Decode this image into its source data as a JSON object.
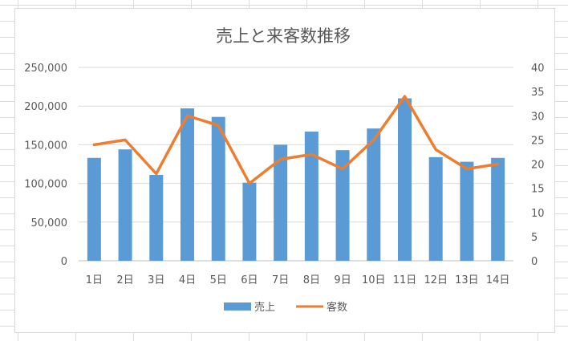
{
  "chart_data": {
    "type": "bar",
    "title": "売上と来客数推移",
    "categories": [
      "1日",
      "2日",
      "3日",
      "4日",
      "5日",
      "6日",
      "7日",
      "8日",
      "9日",
      "10日",
      "11日",
      "12日",
      "13日",
      "14日"
    ],
    "series": [
      {
        "name": "売上",
        "type": "bar",
        "axis": "left",
        "color": "#5B9BD5",
        "values": [
          133000,
          144000,
          111000,
          197000,
          186000,
          101000,
          150000,
          167000,
          143000,
          171000,
          210000,
          134000,
          128000,
          133000
        ]
      },
      {
        "name": "客数",
        "type": "line",
        "axis": "right",
        "color": "#ED7D31",
        "values": [
          24,
          25,
          18,
          30,
          28,
          16,
          21,
          22,
          19,
          25,
          34,
          23,
          19,
          20
        ]
      }
    ],
    "y_left": {
      "min": 0,
      "max": 250000,
      "step": 50000,
      "tick_labels": [
        "0",
        "50,000",
        "100,000",
        "150,000",
        "200,000",
        "250,000"
      ]
    },
    "y_right": {
      "min": 0,
      "max": 40,
      "step": 5,
      "tick_labels": [
        "0",
        "5",
        "10",
        "15",
        "20",
        "25",
        "30",
        "35",
        "40"
      ]
    },
    "grid": true,
    "legend": "bottom"
  }
}
